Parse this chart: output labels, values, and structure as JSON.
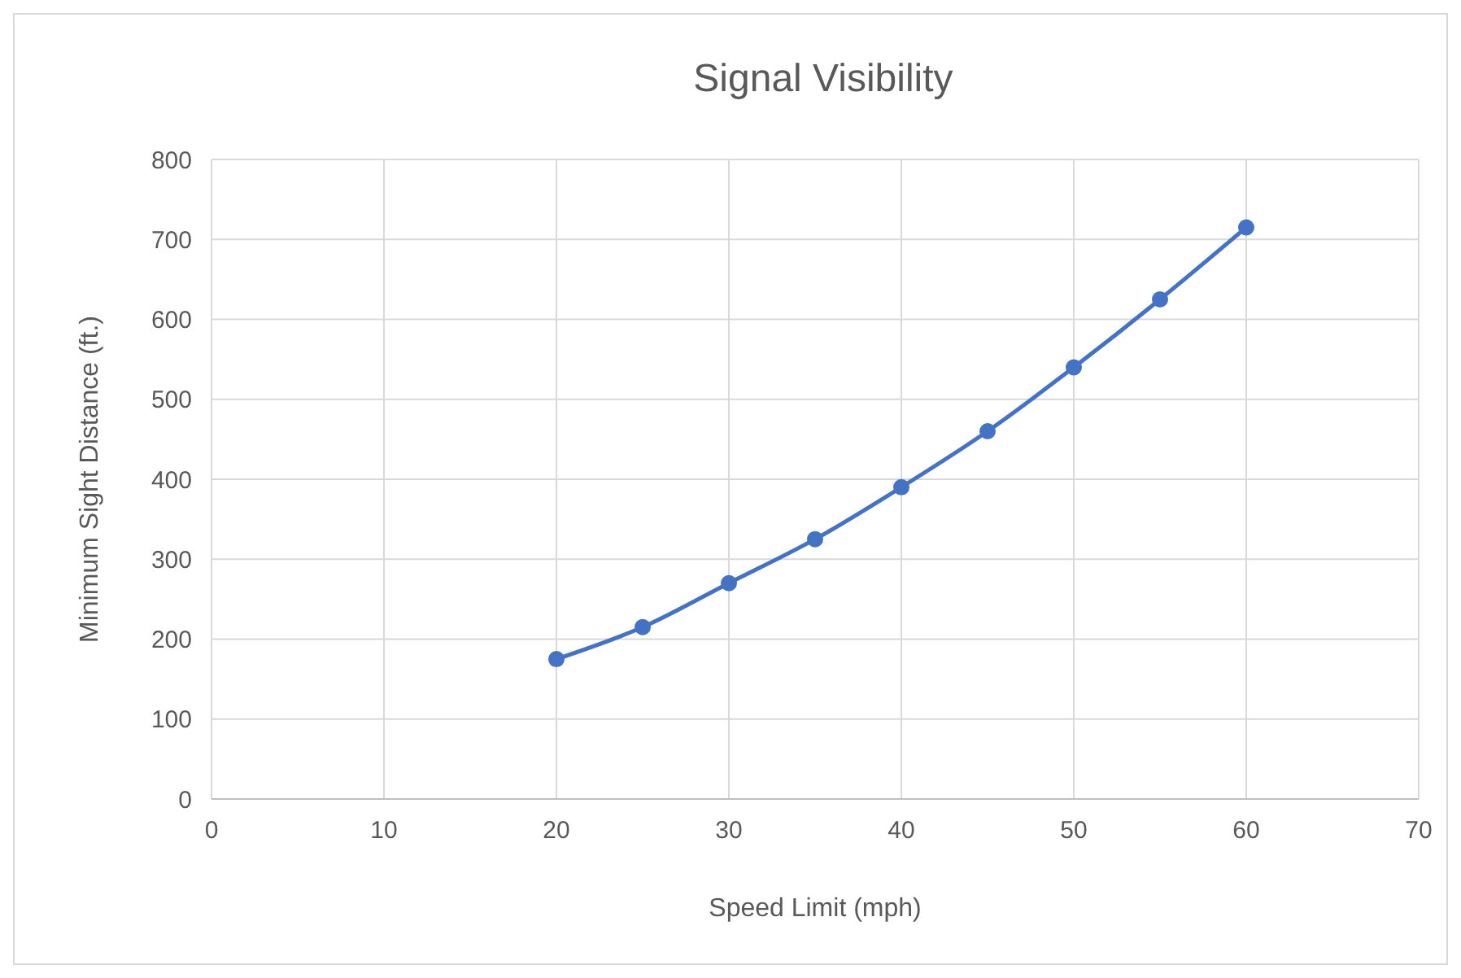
{
  "chart_data": {
    "type": "line",
    "title": "Signal Visibility",
    "xlabel": "Speed Limit (mph)",
    "ylabel": "Minimum Sight Distance (ft.)",
    "x": [
      20,
      25,
      30,
      35,
      40,
      45,
      50,
      55,
      60
    ],
    "series": [
      {
        "color": "#4472c4",
        "values": [
          175,
          215,
          270,
          325,
          390,
          460,
          540,
          625,
          715
        ]
      }
    ],
    "xlim": [
      0,
      70
    ],
    "xticks": [
      0,
      10,
      20,
      30,
      40,
      50,
      60,
      70
    ],
    "ylim": [
      0,
      800
    ],
    "yticks": [
      0,
      100,
      200,
      300,
      400,
      500,
      600,
      700,
      800
    ],
    "grid": true,
    "marker": "circle",
    "line_style": "solid"
  }
}
